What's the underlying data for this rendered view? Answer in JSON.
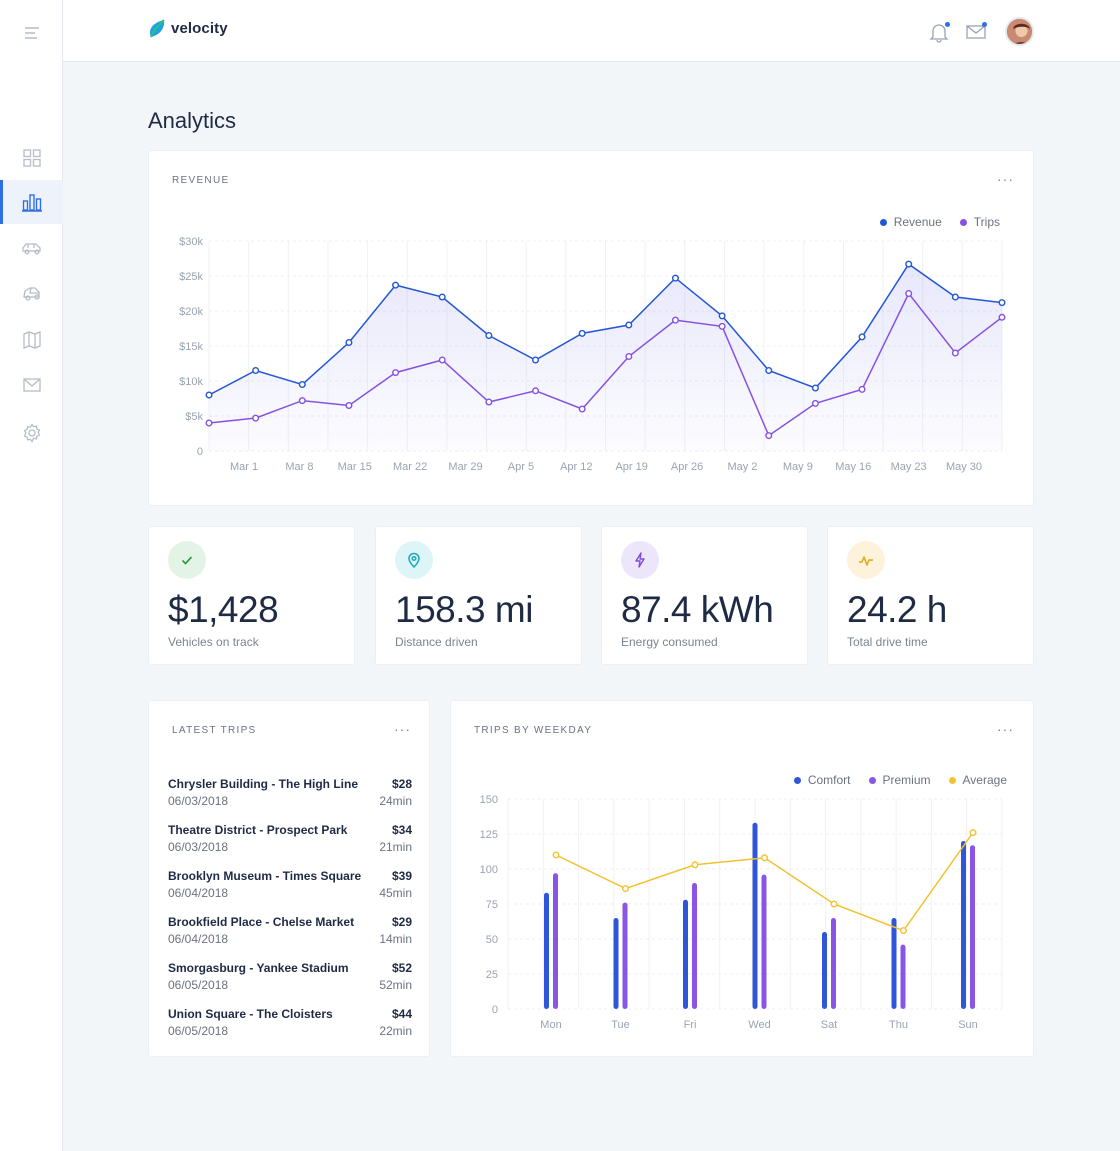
{
  "app": {
    "brand": "velocity",
    "page_title": "Analytics"
  },
  "colors": {
    "accent": "#2f6fe4",
    "revenue": "#2356d4",
    "trips": "#8552e0",
    "comfort": "#2f55d8",
    "premium": "#8a55e6",
    "average": "#f2c230"
  },
  "sidebar": {
    "items": [
      {
        "icon": "grid-icon",
        "active": false
      },
      {
        "icon": "bar-chart-icon",
        "active": true
      },
      {
        "icon": "car-icon",
        "active": false
      },
      {
        "icon": "vehicle-front-icon",
        "active": false
      },
      {
        "icon": "map-icon",
        "active": false
      },
      {
        "icon": "mail-icon",
        "active": false
      },
      {
        "icon": "gear-icon",
        "active": false
      }
    ]
  },
  "topbar": {
    "icons": [
      "bell-icon",
      "envelope-icon",
      "avatar"
    ]
  },
  "revenue_card": {
    "title": "REVENUE",
    "more": "···",
    "legend": [
      "Revenue",
      "Trips"
    ]
  },
  "stats": [
    {
      "value": "$1,428",
      "label": "Vehicles on track",
      "icon": "check-icon",
      "bg": "#e3f4e6",
      "fg": "#2f9e44"
    },
    {
      "value": "158.3 mi",
      "label": "Distance driven",
      "icon": "pin-icon",
      "bg": "#ddf5f7",
      "fg": "#17a9bf"
    },
    {
      "value": "87.4 kWh",
      "label": "Energy consumed",
      "icon": "bolt-icon",
      "bg": "#ede6fb",
      "fg": "#7a4fd8"
    },
    {
      "value": "24.2 h",
      "label": "Total drive time",
      "icon": "activity-icon",
      "bg": "#fdf3dc",
      "fg": "#e0a812"
    }
  ],
  "latest_trips": {
    "title": "LATEST TRIPS",
    "more": "···",
    "rows": [
      {
        "name": "Chrysler Building - The High Line",
        "date": "06/03/2018",
        "price": "$28",
        "duration": "24min"
      },
      {
        "name": "Theatre District - Prospect Park",
        "date": "06/03/2018",
        "price": "$34",
        "duration": "21min"
      },
      {
        "name": "Brooklyn Museum - Times Square",
        "date": "06/04/2018",
        "price": "$39",
        "duration": "45min"
      },
      {
        "name": "Brookfield Place - Chelse Market",
        "date": "06/04/2018",
        "price": "$29",
        "duration": "14min"
      },
      {
        "name": "Smorgasburg - Yankee Stadium",
        "date": "06/05/2018",
        "price": "$52",
        "duration": "52min"
      },
      {
        "name": "Union Square - The Cloisters",
        "date": "06/05/2018",
        "price": "$44",
        "duration": "22min"
      }
    ]
  },
  "weekday_card": {
    "title": "TRIPS BY WEEKDAY",
    "more": "···",
    "legend": [
      "Comfort",
      "Premium",
      "Average"
    ]
  },
  "chart_data": [
    {
      "type": "area",
      "title": "REVENUE",
      "x_tick_labels": [
        "Mar 1",
        "Mar 8",
        "Mar 15",
        "Mar 22",
        "Mar 29",
        "Apr 5",
        "Apr 12",
        "Apr 19",
        "Apr 26",
        "May 2",
        "May 9",
        "May 16",
        "May 23",
        "May 30"
      ],
      "y_tick_labels": [
        "0",
        "$5k",
        "$10k",
        "$15k",
        "$20k",
        "$25k",
        "$30k"
      ],
      "ylim": [
        0,
        30000
      ],
      "grid": true,
      "legend_position": "top-right",
      "series": [
        {
          "name": "Revenue",
          "values": [
            8000,
            11500,
            9500,
            15500,
            23700,
            22000,
            16500,
            13000,
            16800,
            18000,
            24700,
            19300,
            11500,
            9000,
            16300,
            26700,
            22000,
            21200
          ]
        },
        {
          "name": "Trips",
          "values": [
            4000,
            4700,
            7200,
            6500,
            11200,
            13000,
            7000,
            8600,
            6000,
            13500,
            18700,
            17800,
            2200,
            6800,
            8800,
            22500,
            14000,
            19100
          ]
        }
      ]
    },
    {
      "type": "bar",
      "title": "TRIPS BY WEEKDAY",
      "categories": [
        "Mon",
        "Tue",
        "Fri",
        "Wed",
        "Sat",
        "Thu",
        "Sun"
      ],
      "ylim": [
        0,
        150
      ],
      "y_tick_labels": [
        "0",
        "25",
        "50",
        "75",
        "100",
        "125",
        "150"
      ],
      "grid": true,
      "legend_position": "top-right",
      "series": [
        {
          "name": "Comfort",
          "values": [
            83,
            65,
            78,
            133,
            55,
            65,
            120
          ]
        },
        {
          "name": "Premium",
          "values": [
            97,
            76,
            90,
            96,
            65,
            46,
            117
          ]
        },
        {
          "name": "Average",
          "values": [
            110,
            86,
            103,
            108,
            75,
            56,
            126
          ]
        }
      ]
    }
  ]
}
